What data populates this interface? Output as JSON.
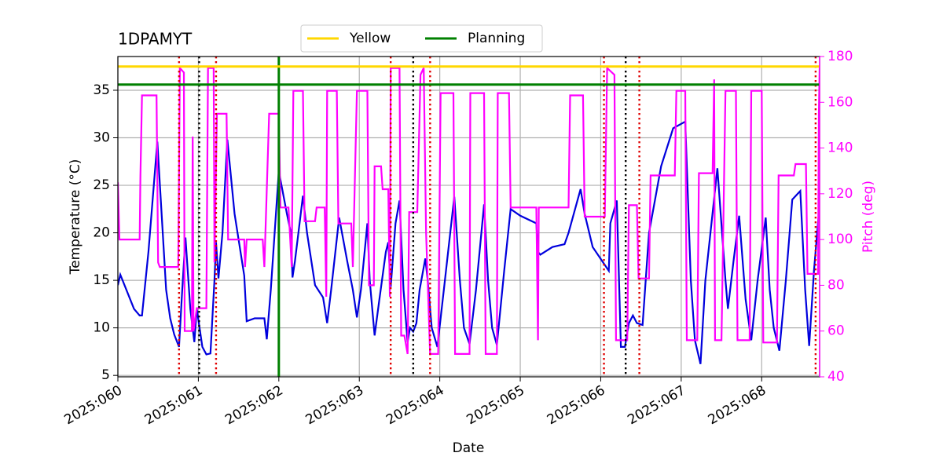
{
  "chart_data": {
    "type": "line",
    "title": "1DPAMYT",
    "xlabel": "Date",
    "ylabel": "Temperature (°C)",
    "y2label": "Pitch (deg)",
    "xlim": [
      60,
      68.72
    ],
    "ylim": [
      4.85,
      38.55
    ],
    "y2lim": [
      40,
      180
    ],
    "xticks": [
      {
        "value": 60,
        "label": "2025:060"
      },
      {
        "value": 61,
        "label": "2025:061"
      },
      {
        "value": 62,
        "label": "2025:062"
      },
      {
        "value": 63,
        "label": "2025:063"
      },
      {
        "value": 64,
        "label": "2025:064"
      },
      {
        "value": 65,
        "label": "2025:065"
      },
      {
        "value": 66,
        "label": "2025:066"
      },
      {
        "value": 67,
        "label": "2025:067"
      },
      {
        "value": 68,
        "label": "2025:068"
      }
    ],
    "yticks": [
      5,
      10,
      15,
      20,
      25,
      30,
      35
    ],
    "y2ticks": [
      40,
      60,
      80,
      100,
      120,
      140,
      160,
      180
    ],
    "y2color": "#ff00ff",
    "grid": true,
    "legend": "top",
    "hlines": [
      {
        "name": "Yellow",
        "color": "#ffd700",
        "value": 37.5
      },
      {
        "name": "Planning",
        "color": "#008000",
        "value": 35.6
      }
    ],
    "vlines": [
      {
        "color": "#e00000",
        "x": [
          60.76,
          61.22,
          63.39,
          63.88,
          66.04,
          66.48,
          68.67
        ]
      },
      {
        "color": "#000000",
        "x": [
          61.01,
          63.67,
          66.31
        ]
      },
      {
        "color": "#008000",
        "solid": true,
        "x": [
          62
        ]
      }
    ],
    "series": [
      {
        "color": "#0000dd",
        "axis": "y",
        "x": [
          60.0,
          60.03,
          60.2,
          60.27,
          60.3,
          60.38,
          60.49,
          60.6,
          60.65,
          60.7,
          60.76,
          60.8,
          60.84,
          60.9,
          60.95,
          60.98,
          61.05,
          61.1,
          61.15,
          61.2,
          61.22,
          61.25,
          61.3,
          61.36,
          61.45,
          61.57,
          61.6,
          61.7,
          61.82,
          61.85,
          61.9,
          62.0,
          62.1,
          62.15,
          62.17,
          62.2,
          62.3,
          62.35,
          62.45,
          62.55,
          62.6,
          62.65,
          62.75,
          62.85,
          62.92,
          62.97,
          63.02,
          63.1,
          63.13,
          63.19,
          63.25,
          63.33,
          63.36,
          63.39,
          63.45,
          63.5,
          63.55,
          63.6,
          63.63,
          63.67,
          63.71,
          63.75,
          63.82,
          63.85,
          63.9,
          63.97,
          64.05,
          64.18,
          64.25,
          64.3,
          64.37,
          64.45,
          64.55,
          64.6,
          64.65,
          64.71,
          64.8,
          64.88,
          65.0,
          65.2,
          65.22,
          65.25,
          65.4,
          65.55,
          65.6,
          65.75,
          65.8,
          65.9,
          66.1,
          66.12,
          66.2,
          66.25,
          66.3,
          66.35,
          66.4,
          66.45,
          66.52,
          66.6,
          66.75,
          66.9,
          67.05,
          67.12,
          67.17,
          67.24,
          67.3,
          67.45,
          67.55,
          67.58,
          67.65,
          67.72,
          67.8,
          67.87,
          67.95,
          68.05,
          68.1,
          68.15,
          68.22,
          68.3,
          68.38,
          68.48,
          68.54,
          68.59,
          68.65,
          68.72
        ],
        "values": [
          14.5,
          15.6,
          12,
          11.3,
          11.3,
          18,
          29.6,
          14,
          11,
          9.3,
          8,
          14,
          19.5,
          12,
          8.5,
          12,
          8,
          7.2,
          7.3,
          15,
          19,
          15.2,
          20,
          29.8,
          22,
          15.5,
          10.7,
          11,
          11,
          8.8,
          14,
          26.5,
          22,
          20,
          15.3,
          17,
          23.9,
          20,
          14.5,
          13.2,
          10.5,
          14,
          21.6,
          17,
          14,
          11.1,
          14,
          21,
          15,
          9.2,
          13,
          18,
          19,
          14.3,
          21,
          23.4,
          14,
          8.5,
          10,
          9.6,
          10.5,
          14,
          17.3,
          15,
          10,
          8,
          14,
          23.8,
          15,
          10,
          8.3,
          14,
          23,
          15,
          10,
          8.2,
          16,
          22.5,
          21.8,
          21,
          18,
          17.7,
          18.5,
          18.8,
          20,
          24.6,
          22,
          18.5,
          16,
          21,
          23.4,
          8,
          8,
          10.5,
          11.3,
          10.5,
          10.3,
          20,
          27,
          31,
          31.7,
          15,
          8.7,
          6.2,
          15,
          26.8,
          15,
          12,
          17,
          21.8,
          13,
          8.7,
          15,
          21.6,
          14,
          10,
          7.6,
          15,
          23.5,
          24.4,
          14,
          8.1,
          16,
          23
        ]
      },
      {
        "color": "#ff00ff",
        "axis": "y2",
        "x": [
          60.0,
          60.02,
          60.27,
          60.28,
          60.3,
          60.48,
          60.5,
          60.52,
          60.75,
          60.77,
          60.82,
          60.83,
          60.92,
          60.93,
          60.94,
          60.98,
          61.1,
          61.12,
          61.19,
          61.2,
          61.23,
          61.35,
          61.37,
          61.57,
          61.58,
          61.6,
          61.8,
          61.82,
          61.88,
          62.0,
          62.02,
          62.12,
          62.16,
          62.18,
          62.3,
          62.32,
          62.45,
          62.47,
          62.57,
          62.59,
          62.6,
          62.72,
          62.74,
          62.9,
          62.92,
          62.97,
          63.1,
          63.12,
          63.18,
          63.19,
          63.27,
          63.29,
          63.36,
          63.38,
          63.39,
          63.5,
          63.52,
          63.56,
          63.6,
          63.62,
          63.72,
          63.76,
          63.8,
          63.83,
          63.88,
          63.98,
          64.01,
          64.17,
          64.19,
          64.37,
          64.38,
          64.55,
          64.57,
          64.71,
          64.72,
          64.86,
          64.88,
          65.2,
          65.22,
          65.23,
          65.6,
          65.62,
          65.78,
          65.8,
          66.05,
          66.08,
          66.17,
          66.19,
          66.33,
          66.35,
          66.45,
          66.47,
          66.6,
          66.62,
          66.92,
          66.94,
          67.05,
          67.07,
          67.2,
          67.22,
          67.39,
          67.41,
          67.42,
          67.5,
          67.55,
          67.68,
          67.7,
          67.85,
          67.87,
          68.0,
          68.02,
          68.19,
          68.21,
          68.4,
          68.42,
          68.55,
          68.57,
          68.7,
          68.71,
          68.72
        ],
        "values": [
          125,
          100,
          100,
          128,
          163,
          163,
          90,
          88,
          88,
          175,
          173,
          60,
          60,
          145,
          60,
          70,
          70,
          175,
          175,
          90,
          155,
          155,
          100,
          100,
          88,
          100,
          100,
          88,
          155,
          155,
          114,
          114,
          88,
          165,
          165,
          108,
          108,
          114,
          114,
          75,
          165,
          165,
          107,
          107,
          88,
          165,
          165,
          80,
          80,
          132,
          132,
          122,
          122,
          75,
          175,
          175,
          58,
          58,
          50,
          112,
          112,
          172,
          175,
          103,
          50,
          50,
          164,
          164,
          50,
          50,
          164,
          164,
          50,
          50,
          164,
          164,
          114,
          114,
          56,
          114,
          114,
          163,
          163,
          110,
          110,
          175,
          172,
          56,
          56,
          115,
          115,
          83,
          83,
          128,
          128,
          165,
          165,
          56,
          56,
          129,
          129,
          170,
          56,
          56,
          165,
          165,
          56,
          56,
          165,
          165,
          55,
          55,
          128,
          128,
          133,
          133,
          85,
          85,
          155,
          175
        ]
      }
    ]
  }
}
